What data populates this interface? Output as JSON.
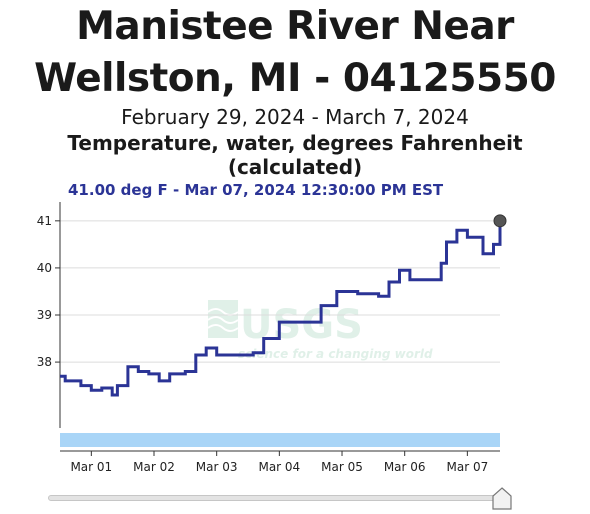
{
  "header": {
    "title_line1": "Manistee River Near",
    "title_line2": "Wellston, MI - 04125550",
    "date_range": "February 29, 2024 - March 7, 2024",
    "parameter_line1": "Temperature, water, degrees Fahrenheit",
    "parameter_line2": "(calculated)",
    "latest_reading": "41.00 deg F - Mar 07, 2024 12:30:00 PM EST"
  },
  "watermark": {
    "logo_text": "USGS",
    "tagline": "science for a changing world"
  },
  "colors": {
    "series": "#2b3496",
    "latest_text": "#2b3496",
    "marker": "#555555",
    "brush": "#a9d5f7",
    "gridline": "#dcdcdc",
    "watermark": "#cfe6dc"
  },
  "slider": {
    "position": 1.0
  },
  "chart_data": {
    "type": "line",
    "title": "Temperature, water, degrees Fahrenheit (calculated)",
    "xlabel": "",
    "ylabel": "",
    "ylim": [
      36.6,
      41.4
    ],
    "xlim": [
      "2024-02-29T12:00",
      "2024-03-07T12:30"
    ],
    "yticks": [
      38,
      39,
      40,
      41
    ],
    "ytick_labels": [
      "38",
      "39",
      "40",
      "41"
    ],
    "xticks": [
      "2024-03-01T00:00",
      "2024-03-02T00:00",
      "2024-03-03T00:00",
      "2024-03-04T00:00",
      "2024-03-05T00:00",
      "2024-03-06T00:00",
      "2024-03-07T00:00"
    ],
    "xtick_labels": [
      "Mar 01",
      "Mar 02",
      "Mar 03",
      "Mar 04",
      "Mar 05",
      "Mar 06",
      "Mar 07"
    ],
    "grid": true,
    "series": [
      {
        "x": [
          "2024-02-29T12:00",
          "2024-02-29T14:00",
          "2024-02-29T16:00",
          "2024-02-29T20:00",
          "2024-03-01T00:00",
          "2024-03-01T04:00",
          "2024-03-01T08:00",
          "2024-03-01T10:00",
          "2024-03-01T14:00",
          "2024-03-01T18:00",
          "2024-03-01T22:00",
          "2024-03-02T02:00",
          "2024-03-02T06:00",
          "2024-03-02T12:00",
          "2024-03-02T16:00",
          "2024-03-02T20:00",
          "2024-03-03T00:00",
          "2024-03-03T08:00",
          "2024-03-03T14:00",
          "2024-03-03T18:00",
          "2024-03-04T00:00",
          "2024-03-04T08:00",
          "2024-03-04T14:00",
          "2024-03-04T16:00",
          "2024-03-04T22:00",
          "2024-03-05T06:00",
          "2024-03-05T14:00",
          "2024-03-05T18:00",
          "2024-03-05T22:00",
          "2024-03-06T02:00",
          "2024-03-06T10:00",
          "2024-03-06T14:00",
          "2024-03-06T16:00",
          "2024-03-06T20:00",
          "2024-03-07T00:00",
          "2024-03-07T06:00",
          "2024-03-07T10:00",
          "2024-03-07T12:30"
        ],
        "y": [
          37.7,
          37.6,
          37.6,
          37.5,
          37.4,
          37.45,
          37.3,
          37.5,
          37.9,
          37.8,
          37.75,
          37.6,
          37.75,
          37.8,
          38.15,
          38.3,
          38.15,
          38.15,
          38.2,
          38.5,
          38.85,
          38.85,
          38.85,
          39.2,
          39.5,
          39.45,
          39.4,
          39.7,
          39.95,
          39.75,
          39.75,
          40.1,
          40.55,
          40.8,
          40.65,
          40.3,
          40.5,
          41.0
        ]
      }
    ]
  }
}
